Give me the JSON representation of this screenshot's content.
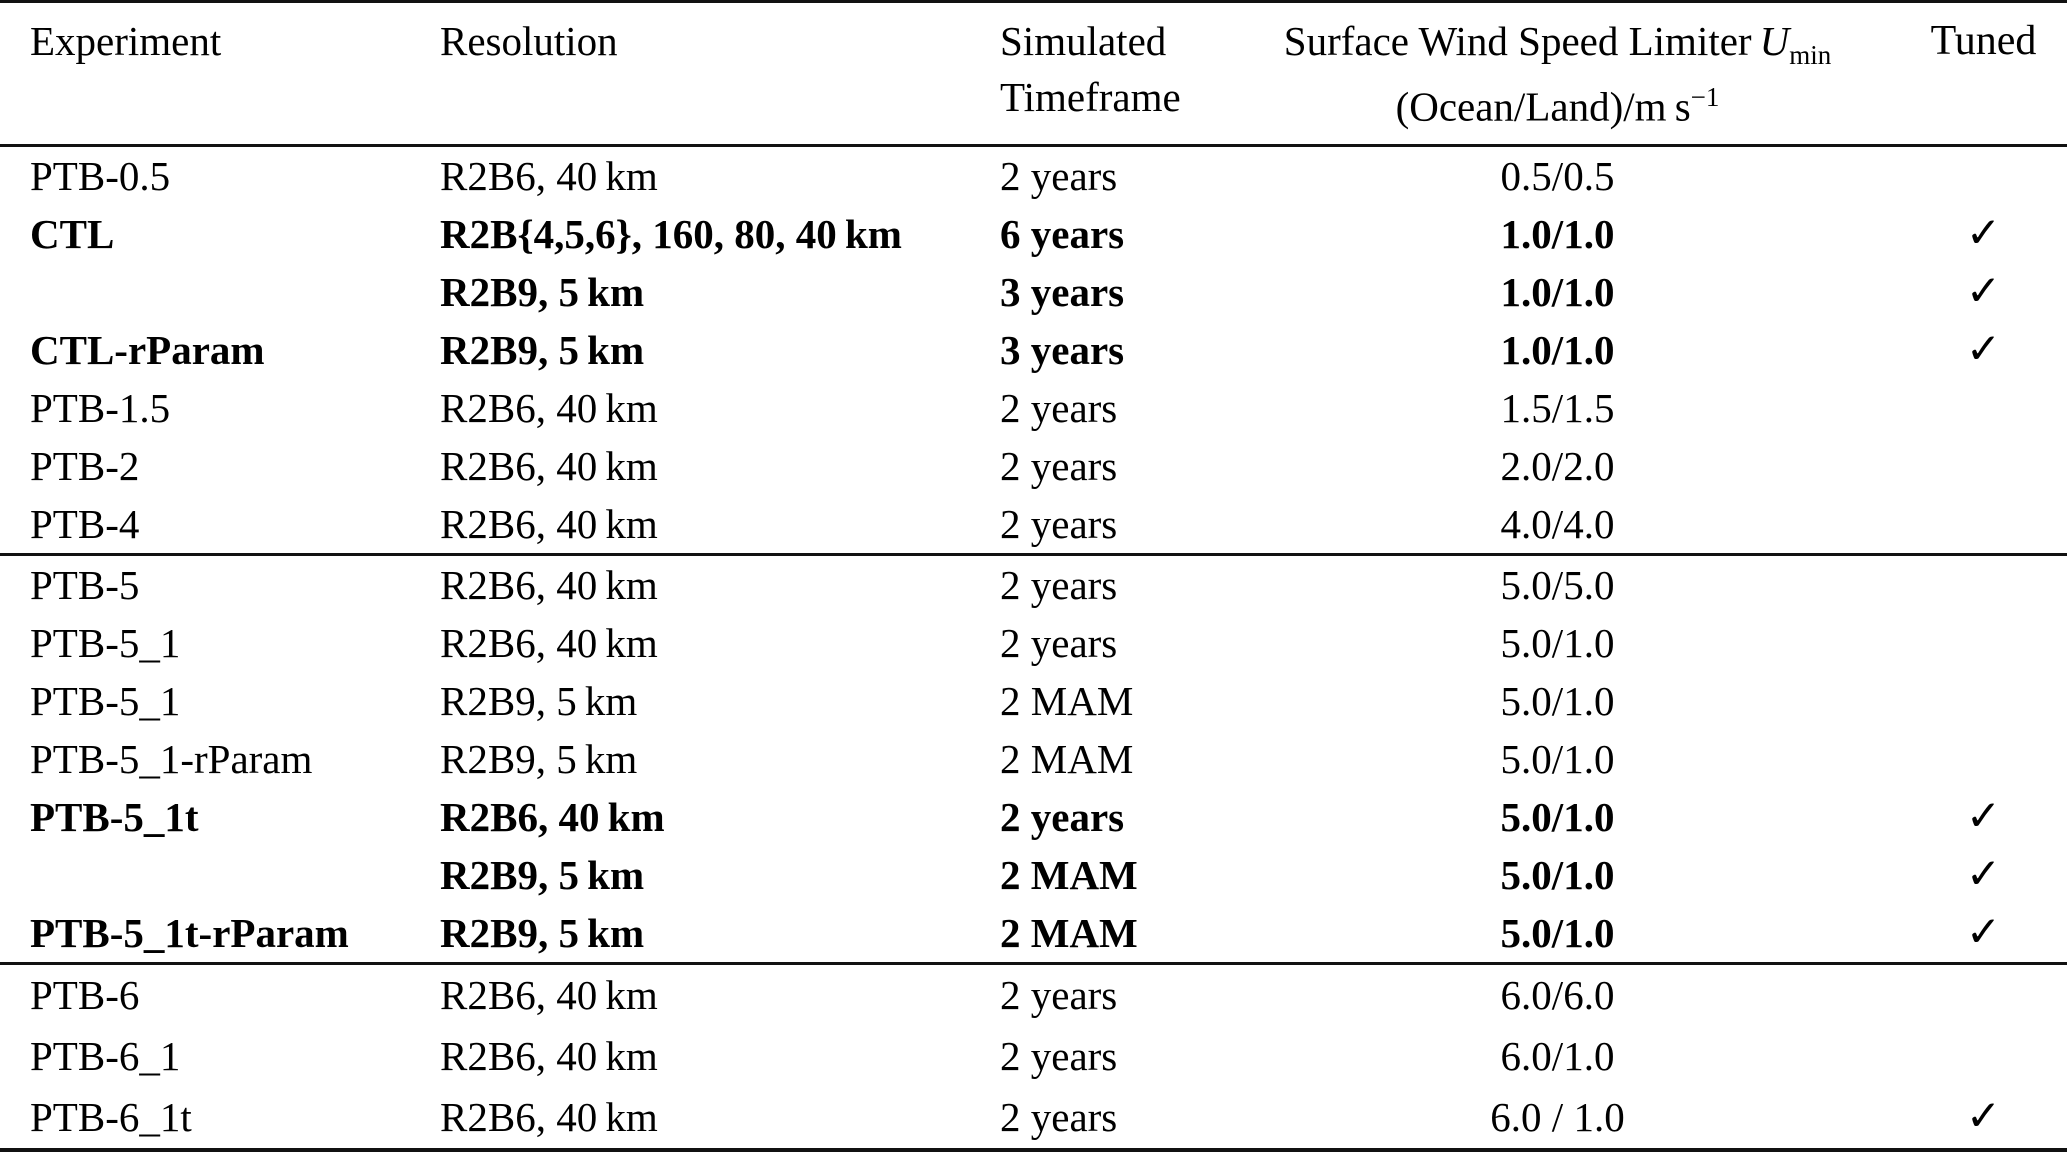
{
  "colors": {
    "background": "#ffffff",
    "text": "#000000",
    "rule": "#111111"
  },
  "checkmark_icon": "✓",
  "header": {
    "experiment": "Experiment",
    "resolution": "Resolution",
    "simulated_line1": "Simulated",
    "simulated_line2": "Timeframe",
    "limiter_line1_text": "Surface Wind Speed Limiter",
    "limiter_symbol": "U",
    "limiter_sub": "min",
    "limiter_line2_text": "(Ocean/Land)/m s",
    "limiter_sup": "−1",
    "tuned": "Tuned"
  },
  "sections": [
    {
      "rows": [
        {
          "experiment": "PTB-0.5",
          "resolution": "R2B6, 40 km",
          "timeframe": "2 years",
          "limiter": "0.5/0.5",
          "tuned": ""
        },
        {
          "experiment": "CTL",
          "resolution": "R2B{4,5,6}, 160, 80, 40 km",
          "timeframe": "6 years",
          "limiter": "1.0/1.0",
          "tuned": "✓"
        },
        {
          "experiment": "",
          "resolution": "R2B9, 5 km",
          "timeframe": "3 years",
          "limiter": "1.0/1.0",
          "tuned": "✓"
        },
        {
          "experiment": "CTL-rParam",
          "resolution": "R2B9, 5 km",
          "timeframe": "3 years",
          "limiter": "1.0/1.0",
          "tuned": "✓"
        },
        {
          "experiment": "PTB-1.5",
          "resolution": "R2B6, 40 km",
          "timeframe": "2 years",
          "limiter": "1.5/1.5",
          "tuned": ""
        },
        {
          "experiment": "PTB-2",
          "resolution": "R2B6, 40 km",
          "timeframe": "2 years",
          "limiter": "2.0/2.0",
          "tuned": ""
        },
        {
          "experiment": "PTB-4",
          "resolution": "R2B6, 40 km",
          "timeframe": "2 years",
          "limiter": "4.0/4.0",
          "tuned": ""
        }
      ]
    },
    {
      "rows": [
        {
          "experiment": "PTB-5",
          "resolution": "R2B6, 40 km",
          "timeframe": "2 years",
          "limiter": "5.0/5.0",
          "tuned": ""
        },
        {
          "experiment": "PTB-5_1",
          "resolution": "R2B6, 40 km",
          "timeframe": "2 years",
          "limiter": "5.0/1.0",
          "tuned": ""
        },
        {
          "experiment": "PTB-5_1",
          "resolution": "R2B9, 5 km",
          "timeframe": "2 MAM",
          "limiter": "5.0/1.0",
          "tuned": ""
        },
        {
          "experiment": "PTB-5_1-rParam",
          "resolution": "R2B9, 5 km",
          "timeframe": "2 MAM",
          "limiter": "5.0/1.0",
          "tuned": ""
        },
        {
          "experiment": "PTB-5_1t",
          "resolution": "R2B6, 40 km",
          "timeframe": "2 years",
          "limiter": "5.0/1.0",
          "tuned": "✓"
        },
        {
          "experiment": "",
          "resolution": "R2B9, 5 km",
          "timeframe": "2 MAM",
          "limiter": "5.0/1.0",
          "tuned": "✓"
        },
        {
          "experiment": "PTB-5_1t-rParam",
          "resolution": "R2B9, 5 km",
          "timeframe": "2 MAM",
          "limiter": "5.0/1.0",
          "tuned": "✓"
        }
      ]
    },
    {
      "rows": [
        {
          "experiment": "PTB-6",
          "resolution": "R2B6, 40 km",
          "timeframe": "2 years",
          "limiter": "6.0/6.0",
          "tuned": ""
        },
        {
          "experiment": "PTB-6_1",
          "resolution": "R2B6, 40 km",
          "timeframe": "2 years",
          "limiter": "6.0/1.0",
          "tuned": ""
        },
        {
          "experiment": "PTB-6_1t",
          "resolution": "R2B6, 40 km",
          "timeframe": "2 years",
          "limiter": "6.0 / 1.0",
          "tuned": "✓"
        }
      ]
    }
  ]
}
